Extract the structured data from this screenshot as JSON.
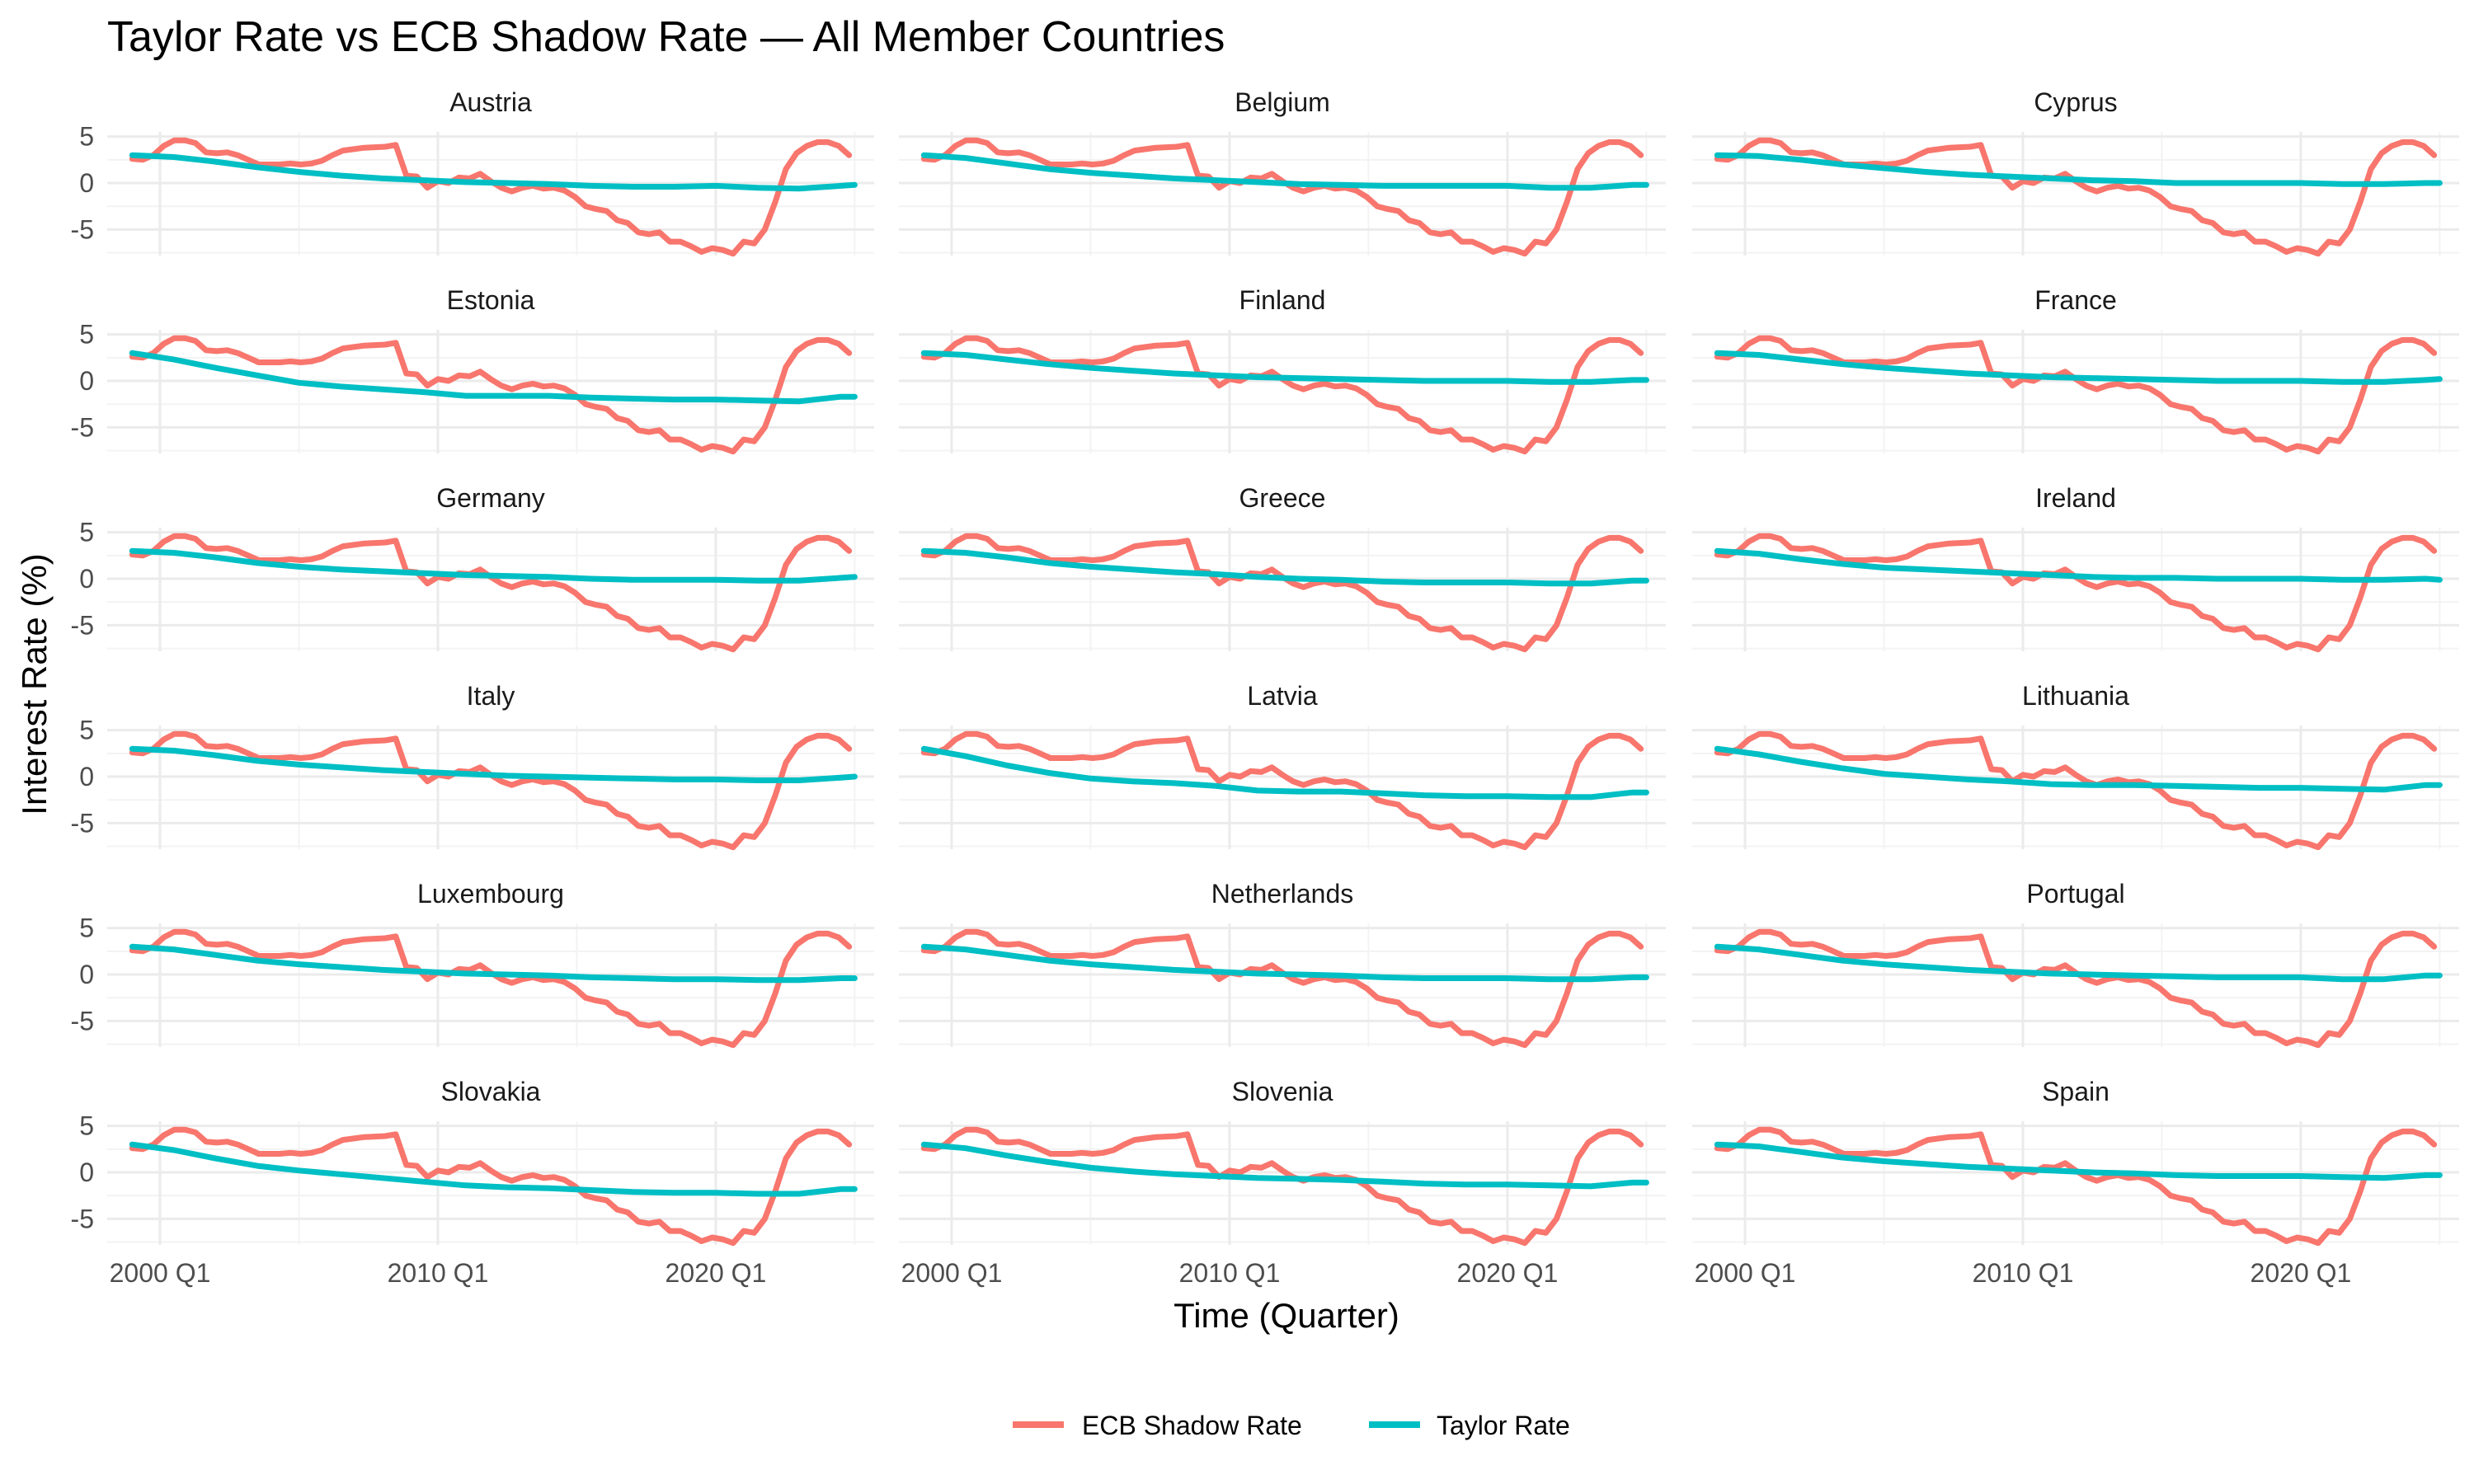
{
  "chart_data": {
    "type": "line",
    "title": "Taylor Rate vs ECB Shadow Rate — All Member Countries",
    "xlabel": "Time (Quarter)",
    "ylabel": "Interest Rate (%)",
    "x_ticks": [
      "2000 Q1",
      "2010 Q1",
      "2020 Q1"
    ],
    "x_tick_years": [
      2000,
      2010,
      2020
    ],
    "xlim": [
      1998.1,
      2025.7
    ],
    "y_ticks": [
      5,
      0,
      -5
    ],
    "ylim": [
      -7.8,
      5.5
    ],
    "grid": true,
    "legend_position": "bottom",
    "legend": [
      "ECB Shadow Rate",
      "Taylor Rate"
    ],
    "series_colors": {
      "ECB Shadow Rate": "#F8766D",
      "Taylor Rate": "#00BFC4"
    },
    "ecb_shadow_rate": [
      [
        1999.0,
        2.6
      ],
      [
        1999.5,
        2.5
      ],
      [
        2000.0,
        3.0
      ],
      [
        2000.5,
        4.0
      ],
      [
        2001.0,
        4.6
      ],
      [
        2001.5,
        4.6
      ],
      [
        2002.0,
        4.3
      ],
      [
        2002.5,
        3.3
      ],
      [
        2003.0,
        3.2
      ],
      [
        2003.5,
        3.3
      ],
      [
        2004.0,
        3.0
      ],
      [
        2004.5,
        2.5
      ],
      [
        2005.0,
        2.0
      ],
      [
        2006.0,
        2.0
      ],
      [
        2006.5,
        2.1
      ],
      [
        2007.0,
        2.0
      ],
      [
        2007.5,
        2.1
      ],
      [
        2008.0,
        2.4
      ],
      [
        2008.5,
        3.0
      ],
      [
        2009.0,
        3.5
      ],
      [
        2010.0,
        3.8
      ],
      [
        2011.0,
        3.9
      ],
      [
        2011.5,
        4.1
      ],
      [
        2012.0,
        0.8
      ],
      [
        2012.5,
        0.7
      ],
      [
        2013.0,
        -0.5
      ],
      [
        2013.5,
        0.2
      ],
      [
        2014.0,
        0.0
      ],
      [
        2014.5,
        0.6
      ],
      [
        2015.0,
        0.5
      ],
      [
        2015.5,
        1.0
      ],
      [
        2016.0,
        0.2
      ],
      [
        2016.5,
        -0.5
      ],
      [
        2017.0,
        -0.9
      ],
      [
        2017.5,
        -0.5
      ],
      [
        2018.0,
        -0.3
      ],
      [
        2018.5,
        -0.6
      ],
      [
        2019.0,
        -0.5
      ],
      [
        2019.5,
        -0.8
      ],
      [
        2020.0,
        -1.5
      ],
      [
        2020.5,
        -2.5
      ],
      [
        2021.0,
        -2.8
      ],
      [
        2021.5,
        -3.0
      ],
      [
        2022.0,
        -4.0
      ],
      [
        2022.5,
        -4.3
      ],
      [
        2023.0,
        -5.3
      ],
      [
        2023.5,
        -5.5
      ],
      [
        2024.0,
        -5.3
      ],
      [
        2024.5,
        -6.3
      ],
      [
        2025.0,
        -6.3
      ],
      [
        2025.5,
        -6.8
      ],
      [
        2026.0,
        -7.4
      ],
      [
        2026.5,
        -7.0
      ],
      [
        2027.0,
        -7.2
      ],
      [
        2027.5,
        -7.6
      ],
      [
        2028.0,
        -6.3
      ],
      [
        2028.5,
        -6.5
      ],
      [
        2029.0,
        -5.0
      ],
      [
        2029.5,
        -2.0
      ],
      [
        2030.0,
        1.5
      ],
      [
        2030.5,
        3.2
      ],
      [
        2031.0,
        4.0
      ],
      [
        2031.5,
        4.4
      ],
      [
        2032.0,
        4.4
      ],
      [
        2032.5,
        4.0
      ],
      [
        2033.0,
        3.0
      ]
    ],
    "ecb_shadow_rate_year_scale_note": "x values above are internal positions; see x_map",
    "x_map": {
      "year_2000": 2000.0,
      "year_2010": 2010.0,
      "year_2020": 2020.0
    },
    "panels": [
      {
        "country": "Austria",
        "taylor_rate": [
          3.0,
          2.8,
          2.3,
          1.7,
          1.2,
          0.8,
          0.5,
          0.3,
          0.1,
          0.0,
          -0.1,
          -0.3,
          -0.4,
          -0.4,
          -0.3,
          -0.5,
          -0.6,
          -0.3,
          -0.2
        ]
      },
      {
        "country": "Belgium",
        "taylor_rate": [
          3.0,
          2.7,
          2.1,
          1.5,
          1.1,
          0.8,
          0.5,
          0.3,
          0.1,
          -0.1,
          -0.2,
          -0.3,
          -0.3,
          -0.3,
          -0.3,
          -0.5,
          -0.5,
          -0.2,
          -0.2
        ]
      },
      {
        "country": "Cyprus",
        "taylor_rate": [
          3.0,
          2.9,
          2.5,
          2.0,
          1.6,
          1.2,
          0.9,
          0.7,
          0.5,
          0.3,
          0.2,
          0.0,
          0.0,
          0.0,
          0.0,
          -0.1,
          -0.1,
          0.0,
          0.0
        ]
      },
      {
        "country": "Estonia",
        "taylor_rate": [
          3.0,
          2.3,
          1.4,
          0.6,
          -0.2,
          -0.6,
          -0.9,
          -1.2,
          -1.6,
          -1.6,
          -1.6,
          -1.8,
          -1.9,
          -2.0,
          -2.0,
          -2.1,
          -2.2,
          -1.7,
          -1.7
        ]
      },
      {
        "country": "Finland",
        "taylor_rate": [
          3.0,
          2.8,
          2.3,
          1.8,
          1.4,
          1.1,
          0.8,
          0.6,
          0.4,
          0.3,
          0.2,
          0.1,
          0.0,
          0.0,
          0.0,
          -0.1,
          -0.1,
          0.1,
          0.1
        ]
      },
      {
        "country": "France",
        "taylor_rate": [
          3.0,
          2.8,
          2.3,
          1.8,
          1.4,
          1.1,
          0.8,
          0.6,
          0.4,
          0.3,
          0.2,
          0.1,
          0.0,
          0.0,
          0.0,
          -0.1,
          -0.1,
          0.1,
          0.2
        ]
      },
      {
        "country": "Germany",
        "taylor_rate": [
          3.0,
          2.8,
          2.3,
          1.7,
          1.3,
          1.0,
          0.8,
          0.6,
          0.4,
          0.3,
          0.2,
          0.0,
          -0.1,
          -0.1,
          -0.1,
          -0.2,
          -0.2,
          0.1,
          0.2
        ]
      },
      {
        "country": "Greece",
        "taylor_rate": [
          3.0,
          2.8,
          2.3,
          1.7,
          1.3,
          1.0,
          0.7,
          0.5,
          0.2,
          0.0,
          -0.1,
          -0.3,
          -0.4,
          -0.4,
          -0.4,
          -0.5,
          -0.5,
          -0.2,
          -0.2
        ]
      },
      {
        "country": "Ireland",
        "taylor_rate": [
          3.0,
          2.7,
          2.1,
          1.6,
          1.2,
          1.0,
          0.8,
          0.6,
          0.4,
          0.2,
          0.1,
          0.1,
          0.0,
          0.0,
          0.0,
          -0.1,
          -0.1,
          0.0,
          -0.1
        ]
      },
      {
        "country": "Italy",
        "taylor_rate": [
          3.0,
          2.8,
          2.3,
          1.7,
          1.3,
          1.0,
          0.7,
          0.5,
          0.3,
          0.1,
          0.0,
          -0.1,
          -0.2,
          -0.3,
          -0.3,
          -0.4,
          -0.4,
          -0.1,
          0.0
        ]
      },
      {
        "country": "Latvia",
        "taylor_rate": [
          3.0,
          2.2,
          1.2,
          0.4,
          -0.2,
          -0.5,
          -0.7,
          -1.0,
          -1.5,
          -1.6,
          -1.6,
          -1.8,
          -2.0,
          -2.1,
          -2.1,
          -2.2,
          -2.2,
          -1.7,
          -1.7
        ]
      },
      {
        "country": "Lithuania",
        "taylor_rate": [
          3.0,
          2.4,
          1.6,
          0.9,
          0.3,
          0.0,
          -0.3,
          -0.5,
          -0.8,
          -0.9,
          -0.9,
          -1.0,
          -1.1,
          -1.2,
          -1.2,
          -1.3,
          -1.4,
          -0.9,
          -0.9
        ]
      },
      {
        "country": "Luxembourg",
        "taylor_rate": [
          3.0,
          2.7,
          2.1,
          1.5,
          1.1,
          0.8,
          0.5,
          0.3,
          0.1,
          0.0,
          -0.1,
          -0.3,
          -0.4,
          -0.5,
          -0.5,
          -0.6,
          -0.6,
          -0.4,
          -0.4
        ]
      },
      {
        "country": "Netherlands",
        "taylor_rate": [
          3.0,
          2.7,
          2.1,
          1.5,
          1.1,
          0.8,
          0.5,
          0.3,
          0.1,
          0.0,
          -0.1,
          -0.3,
          -0.4,
          -0.4,
          -0.4,
          -0.5,
          -0.5,
          -0.3,
          -0.3
        ]
      },
      {
        "country": "Portugal",
        "taylor_rate": [
          3.0,
          2.7,
          2.1,
          1.5,
          1.1,
          0.8,
          0.5,
          0.3,
          0.1,
          0.0,
          -0.1,
          -0.2,
          -0.3,
          -0.3,
          -0.3,
          -0.5,
          -0.5,
          -0.1,
          -0.1
        ]
      },
      {
        "country": "Slovakia",
        "taylor_rate": [
          3.0,
          2.4,
          1.5,
          0.7,
          0.2,
          -0.2,
          -0.6,
          -1.0,
          -1.4,
          -1.6,
          -1.7,
          -1.9,
          -2.1,
          -2.2,
          -2.2,
          -2.3,
          -2.3,
          -1.8,
          -1.8
        ]
      },
      {
        "country": "Slovenia",
        "taylor_rate": [
          3.0,
          2.6,
          1.8,
          1.1,
          0.5,
          0.1,
          -0.2,
          -0.4,
          -0.6,
          -0.7,
          -0.8,
          -1.0,
          -1.2,
          -1.3,
          -1.3,
          -1.4,
          -1.5,
          -1.1,
          -1.1
        ]
      },
      {
        "country": "Spain",
        "taylor_rate": [
          3.0,
          2.8,
          2.2,
          1.6,
          1.2,
          0.9,
          0.6,
          0.4,
          0.2,
          0.0,
          -0.1,
          -0.3,
          -0.4,
          -0.4,
          -0.4,
          -0.5,
          -0.6,
          -0.3,
          -0.3
        ]
      }
    ],
    "taylor_rate_years": [
      1999.0,
      2000.5,
      2002.0,
      2003.5,
      2005.0,
      2006.5,
      2008.0,
      2009.5,
      2011.0,
      2012.5,
      2014.0,
      2015.5,
      2017.0,
      2018.5,
      2020.0,
      2021.5,
      2023.0,
      2024.5,
      2025.0
    ]
  },
  "legend_colors": {
    "ecb": "#F8766D",
    "taylor": "#00BFC4"
  }
}
